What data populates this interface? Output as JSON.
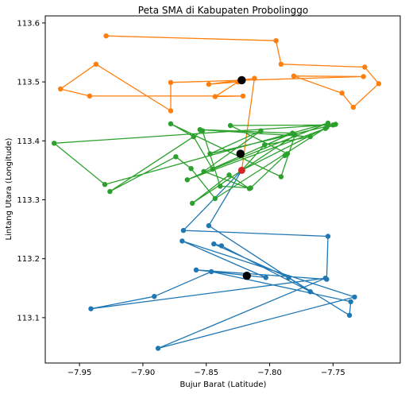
{
  "chart_data": {
    "type": "line",
    "title": "Peta SMA di Kabupaten Probolinggo",
    "xlabel": "Bujur Barat (Latitude)",
    "ylabel": "Lintang Utara (Longitude)",
    "xlim": [
      -7.977,
      -7.697
    ],
    "ylim": [
      113.023,
      113.612
    ],
    "xticks": [
      -7.95,
      -7.9,
      -7.85,
      -7.8,
      -7.75
    ],
    "xtick_labels": [
      "−7.95",
      "−7.90",
      "−7.85",
      "−7.80",
      "−7.75"
    ],
    "yticks": [
      113.1,
      113.2,
      113.3,
      113.4,
      113.5,
      113.6
    ],
    "ytick_labels": [
      "113.1",
      "113.2",
      "113.3",
      "113.4",
      "113.5",
      "113.6"
    ],
    "grid": false,
    "series": [
      {
        "color": "#1f77b4",
        "x": [
          -7.822,
          -7.868,
          -7.754,
          -7.755,
          -7.858,
          -7.803,
          -7.869,
          -7.733,
          -7.888,
          -7.756,
          -7.941,
          -7.891,
          -7.846,
          -7.736,
          -7.737,
          -7.785,
          -7.844,
          -7.838,
          -7.768,
          -7.848,
          -7.822
        ],
        "y": [
          113.35,
          113.248,
          113.238,
          113.165,
          113.181,
          113.168,
          113.23,
          113.135,
          113.048,
          113.167,
          113.115,
          113.136,
          113.178,
          113.127,
          113.104,
          113.168,
          113.225,
          113.222,
          113.144,
          113.256,
          113.35
        ]
      },
      {
        "color": "#ff7f0e",
        "x": [
          -7.929,
          -7.795,
          -7.791,
          -7.725,
          -7.714,
          -7.734,
          -7.743,
          -7.781,
          -7.726,
          -7.878,
          -7.878,
          -7.937,
          -7.965,
          -7.942,
          -7.821,
          -7.843,
          -7.825,
          -7.848,
          -7.812,
          -7.822
        ],
        "y": [
          113.578,
          113.57,
          113.53,
          113.525,
          113.497,
          113.457,
          113.481,
          113.51,
          113.509,
          113.499,
          113.451,
          113.53,
          113.488,
          113.476,
          113.476,
          113.475,
          113.5,
          113.496,
          113.506,
          113.35
        ]
      },
      {
        "color": "#2ca02c",
        "x": [
          -7.822,
          -7.755,
          -7.843,
          -7.862,
          -7.874,
          -7.926,
          -7.853,
          -7.839,
          -7.815,
          -7.788,
          -7.786,
          -7.831,
          -7.75,
          -7.847,
          -7.807,
          -7.852,
          -7.816,
          -7.832,
          -7.861,
          -7.78,
          -7.791,
          -7.878,
          -7.86,
          -7.845,
          -7.754,
          -7.93,
          -7.97,
          -7.748,
          -7.756,
          -7.865,
          -7.782,
          -7.855,
          -7.768,
          -7.804,
          -7.822
        ],
        "y": [
          113.35,
          113.423,
          113.302,
          113.353,
          113.373,
          113.314,
          113.417,
          113.323,
          113.32,
          113.375,
          113.378,
          113.426,
          113.427,
          113.378,
          113.417,
          113.348,
          113.319,
          113.342,
          113.294,
          113.41,
          113.339,
          113.429,
          113.407,
          113.352,
          113.43,
          113.326,
          113.396,
          113.428,
          113.421,
          113.334,
          113.413,
          113.419,
          113.407,
          113.393,
          113.35
        ]
      }
    ],
    "centroids": [
      {
        "x": -7.822,
        "y": 113.503,
        "color": "#000000"
      },
      {
        "x": -7.823,
        "y": 113.378,
        "color": "#000000"
      },
      {
        "x": -7.818,
        "y": 113.171,
        "color": "#000000"
      },
      {
        "x": -7.822,
        "y": 113.35,
        "color": "#d62728"
      }
    ]
  }
}
